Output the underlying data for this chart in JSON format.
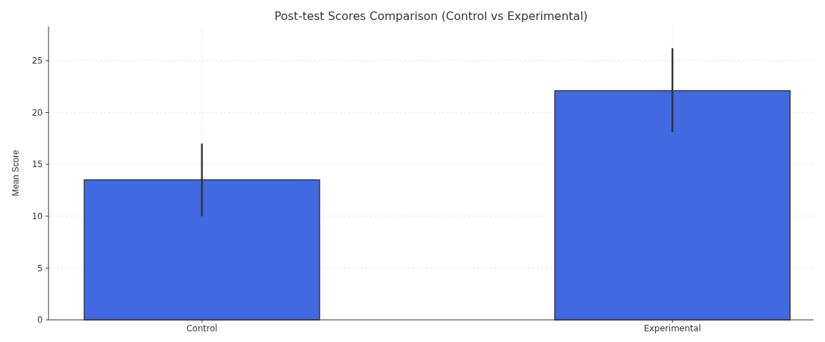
{
  "chart_data": {
    "type": "bar",
    "title": "Post-test Scores Comparison (Control vs Experimental)",
    "ylabel": "Mean Score",
    "categories": [
      "Control",
      "Experimental"
    ],
    "values": [
      13.5,
      22.1
    ],
    "color": "#4169e1",
    "errors": [
      [
        10,
        17
      ],
      [
        18.1,
        26.2
      ]
    ],
    "ylim": [
      0,
      28.3
    ],
    "yticks": [
      0,
      5,
      10,
      15,
      20,
      25
    ],
    "grid": true
  }
}
